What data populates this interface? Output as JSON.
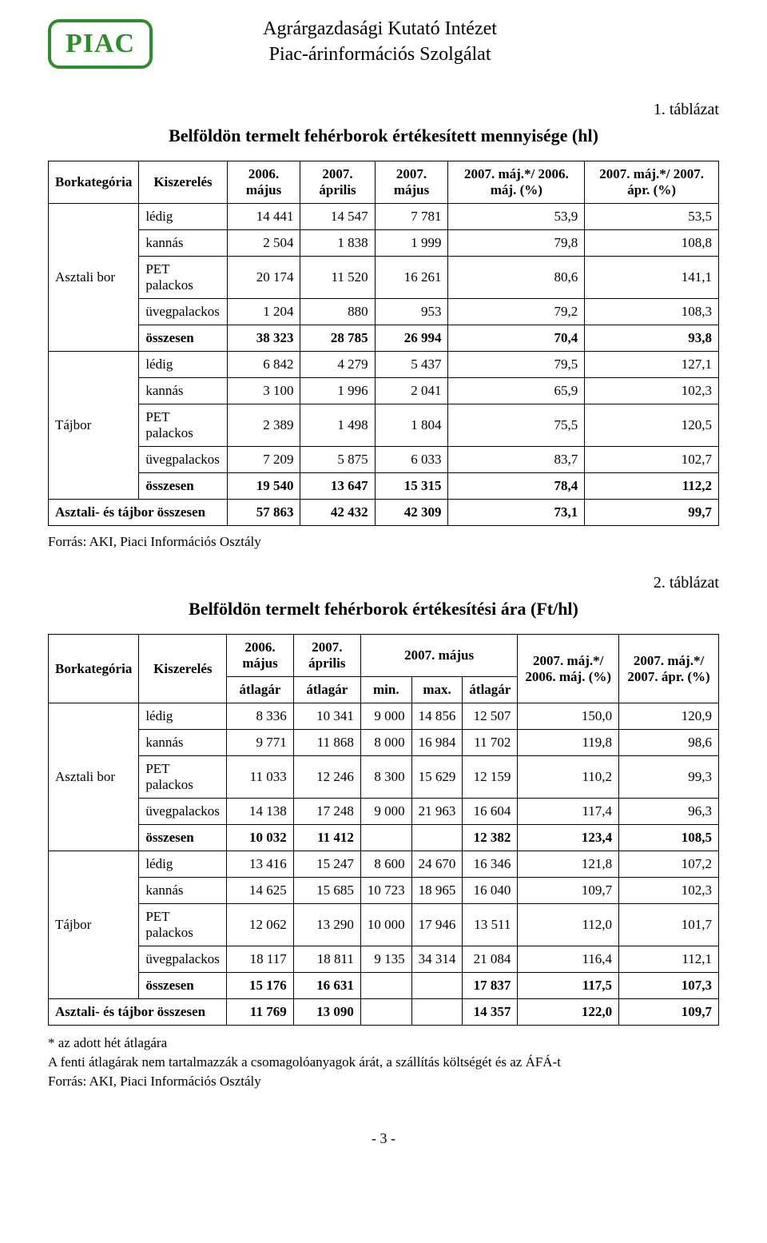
{
  "header": {
    "logo": "PIAC",
    "inst_line1": "Agrárgazdasági Kutató Intézet",
    "inst_line2": "Piac-árinformációs Szolgálat",
    "logo_color": "#2e8b2e"
  },
  "table1": {
    "label": "1. táblázat",
    "title": "Belföldön termelt fehérborok értékesített mennyisége (hl)",
    "columns": {
      "c0": "Borkategória",
      "c1": "Kiszerelés",
      "c2": "2006. május",
      "c3": "2007. április",
      "c4": "2007. május",
      "c5": "2007. máj.*/ 2006. máj. (%)",
      "c6": "2007. máj.*/ 2007. ápr. (%)"
    },
    "groups": [
      {
        "cat": "Asztali bor",
        "rows": [
          {
            "k": "lédig",
            "v": [
              "14 441",
              "14 547",
              "7 781",
              "53,9",
              "53,5"
            ]
          },
          {
            "k": "kannás",
            "v": [
              "2 504",
              "1 838",
              "1 999",
              "79,8",
              "108,8"
            ]
          },
          {
            "k": "PET palackos",
            "v": [
              "20 174",
              "11 520",
              "16 261",
              "80,6",
              "141,1"
            ]
          },
          {
            "k": "üvegpalackos",
            "v": [
              "1 204",
              "880",
              "953",
              "79,2",
              "108,3"
            ]
          },
          {
            "k": "összesen",
            "v": [
              "38 323",
              "28 785",
              "26 994",
              "70,4",
              "93,8"
            ],
            "bold": true
          }
        ]
      },
      {
        "cat": "Tájbor",
        "rows": [
          {
            "k": "lédig",
            "v": [
              "6 842",
              "4 279",
              "5 437",
              "79,5",
              "127,1"
            ]
          },
          {
            "k": "kannás",
            "v": [
              "3 100",
              "1 996",
              "2 041",
              "65,9",
              "102,3"
            ]
          },
          {
            "k": "PET palackos",
            "v": [
              "2 389",
              "1 498",
              "1 804",
              "75,5",
              "120,5"
            ]
          },
          {
            "k": "üvegpalackos",
            "v": [
              "7 209",
              "5 875",
              "6 033",
              "83,7",
              "102,7"
            ]
          },
          {
            "k": "összesen",
            "v": [
              "19 540",
              "13 647",
              "15 315",
              "78,4",
              "112,2"
            ],
            "bold": true
          }
        ]
      }
    ],
    "total": {
      "k": "Asztali- és tájbor összesen",
      "v": [
        "57 863",
        "42 432",
        "42 309",
        "73,1",
        "99,7"
      ]
    },
    "source": "Forrás: AKI, Piaci Információs Osztály"
  },
  "table2": {
    "label": "2. táblázat",
    "title": "Belföldön termelt fehérborok értékesítési ára (Ft/hl)",
    "columns": {
      "c0": "Borkategória",
      "c1": "Kiszerelés",
      "c2": "2006. május",
      "c3": "2007. április",
      "c4": "2007. május",
      "c5": "2007. máj.*/ 2006. máj. (%)",
      "c6": "2007. máj.*/ 2007. ápr. (%)",
      "sub_atlagar": "átlagár",
      "sub_min": "min.",
      "sub_max": "max."
    },
    "groups": [
      {
        "cat": "Asztali bor",
        "rows": [
          {
            "k": "lédig",
            "v": [
              "8 336",
              "10 341",
              "9 000",
              "14 856",
              "12 507",
              "150,0",
              "120,9"
            ]
          },
          {
            "k": "kannás",
            "v": [
              "9 771",
              "11 868",
              "8 000",
              "16 984",
              "11 702",
              "119,8",
              "98,6"
            ]
          },
          {
            "k": "PET palackos",
            "v": [
              "11 033",
              "12 246",
              "8 300",
              "15 629",
              "12 159",
              "110,2",
              "99,3"
            ]
          },
          {
            "k": "üvegpalackos",
            "v": [
              "14 138",
              "17 248",
              "9 000",
              "21 963",
              "16 604",
              "117,4",
              "96,3"
            ]
          },
          {
            "k": "összesen",
            "v": [
              "10 032",
              "11 412",
              "",
              "",
              "12 382",
              "123,4",
              "108,5"
            ],
            "bold": true
          }
        ]
      },
      {
        "cat": "Tájbor",
        "rows": [
          {
            "k": "lédig",
            "v": [
              "13 416",
              "15 247",
              "8 600",
              "24 670",
              "16 346",
              "121,8",
              "107,2"
            ]
          },
          {
            "k": "kannás",
            "v": [
              "14 625",
              "15 685",
              "10 723",
              "18 965",
              "16 040",
              "109,7",
              "102,3"
            ]
          },
          {
            "k": "PET palackos",
            "v": [
              "12 062",
              "13 290",
              "10 000",
              "17 946",
              "13 511",
              "112,0",
              "101,7"
            ]
          },
          {
            "k": "üvegpalackos",
            "v": [
              "18 117",
              "18 811",
              "9 135",
              "34 314",
              "21 084",
              "116,4",
              "112,1"
            ]
          },
          {
            "k": "összesen",
            "v": [
              "15 176",
              "16 631",
              "",
              "",
              "17 837",
              "117,5",
              "107,3"
            ],
            "bold": true
          }
        ]
      }
    ],
    "total": {
      "k": "Asztali- és tájbor összesen",
      "v": [
        "11 769",
        "13 090",
        "",
        "",
        "14 357",
        "122,0",
        "109,7"
      ]
    },
    "footnote1": "* az adott hét átlagára",
    "footnote2": "A fenti átlagárak nem tartalmazzák a csomagolóanyagok árát, a szállítás költségét és az ÁFÁ-t",
    "footnote3": "Forrás: AKI, Piaci Információs Osztály"
  },
  "pagenum": "- 3 -"
}
